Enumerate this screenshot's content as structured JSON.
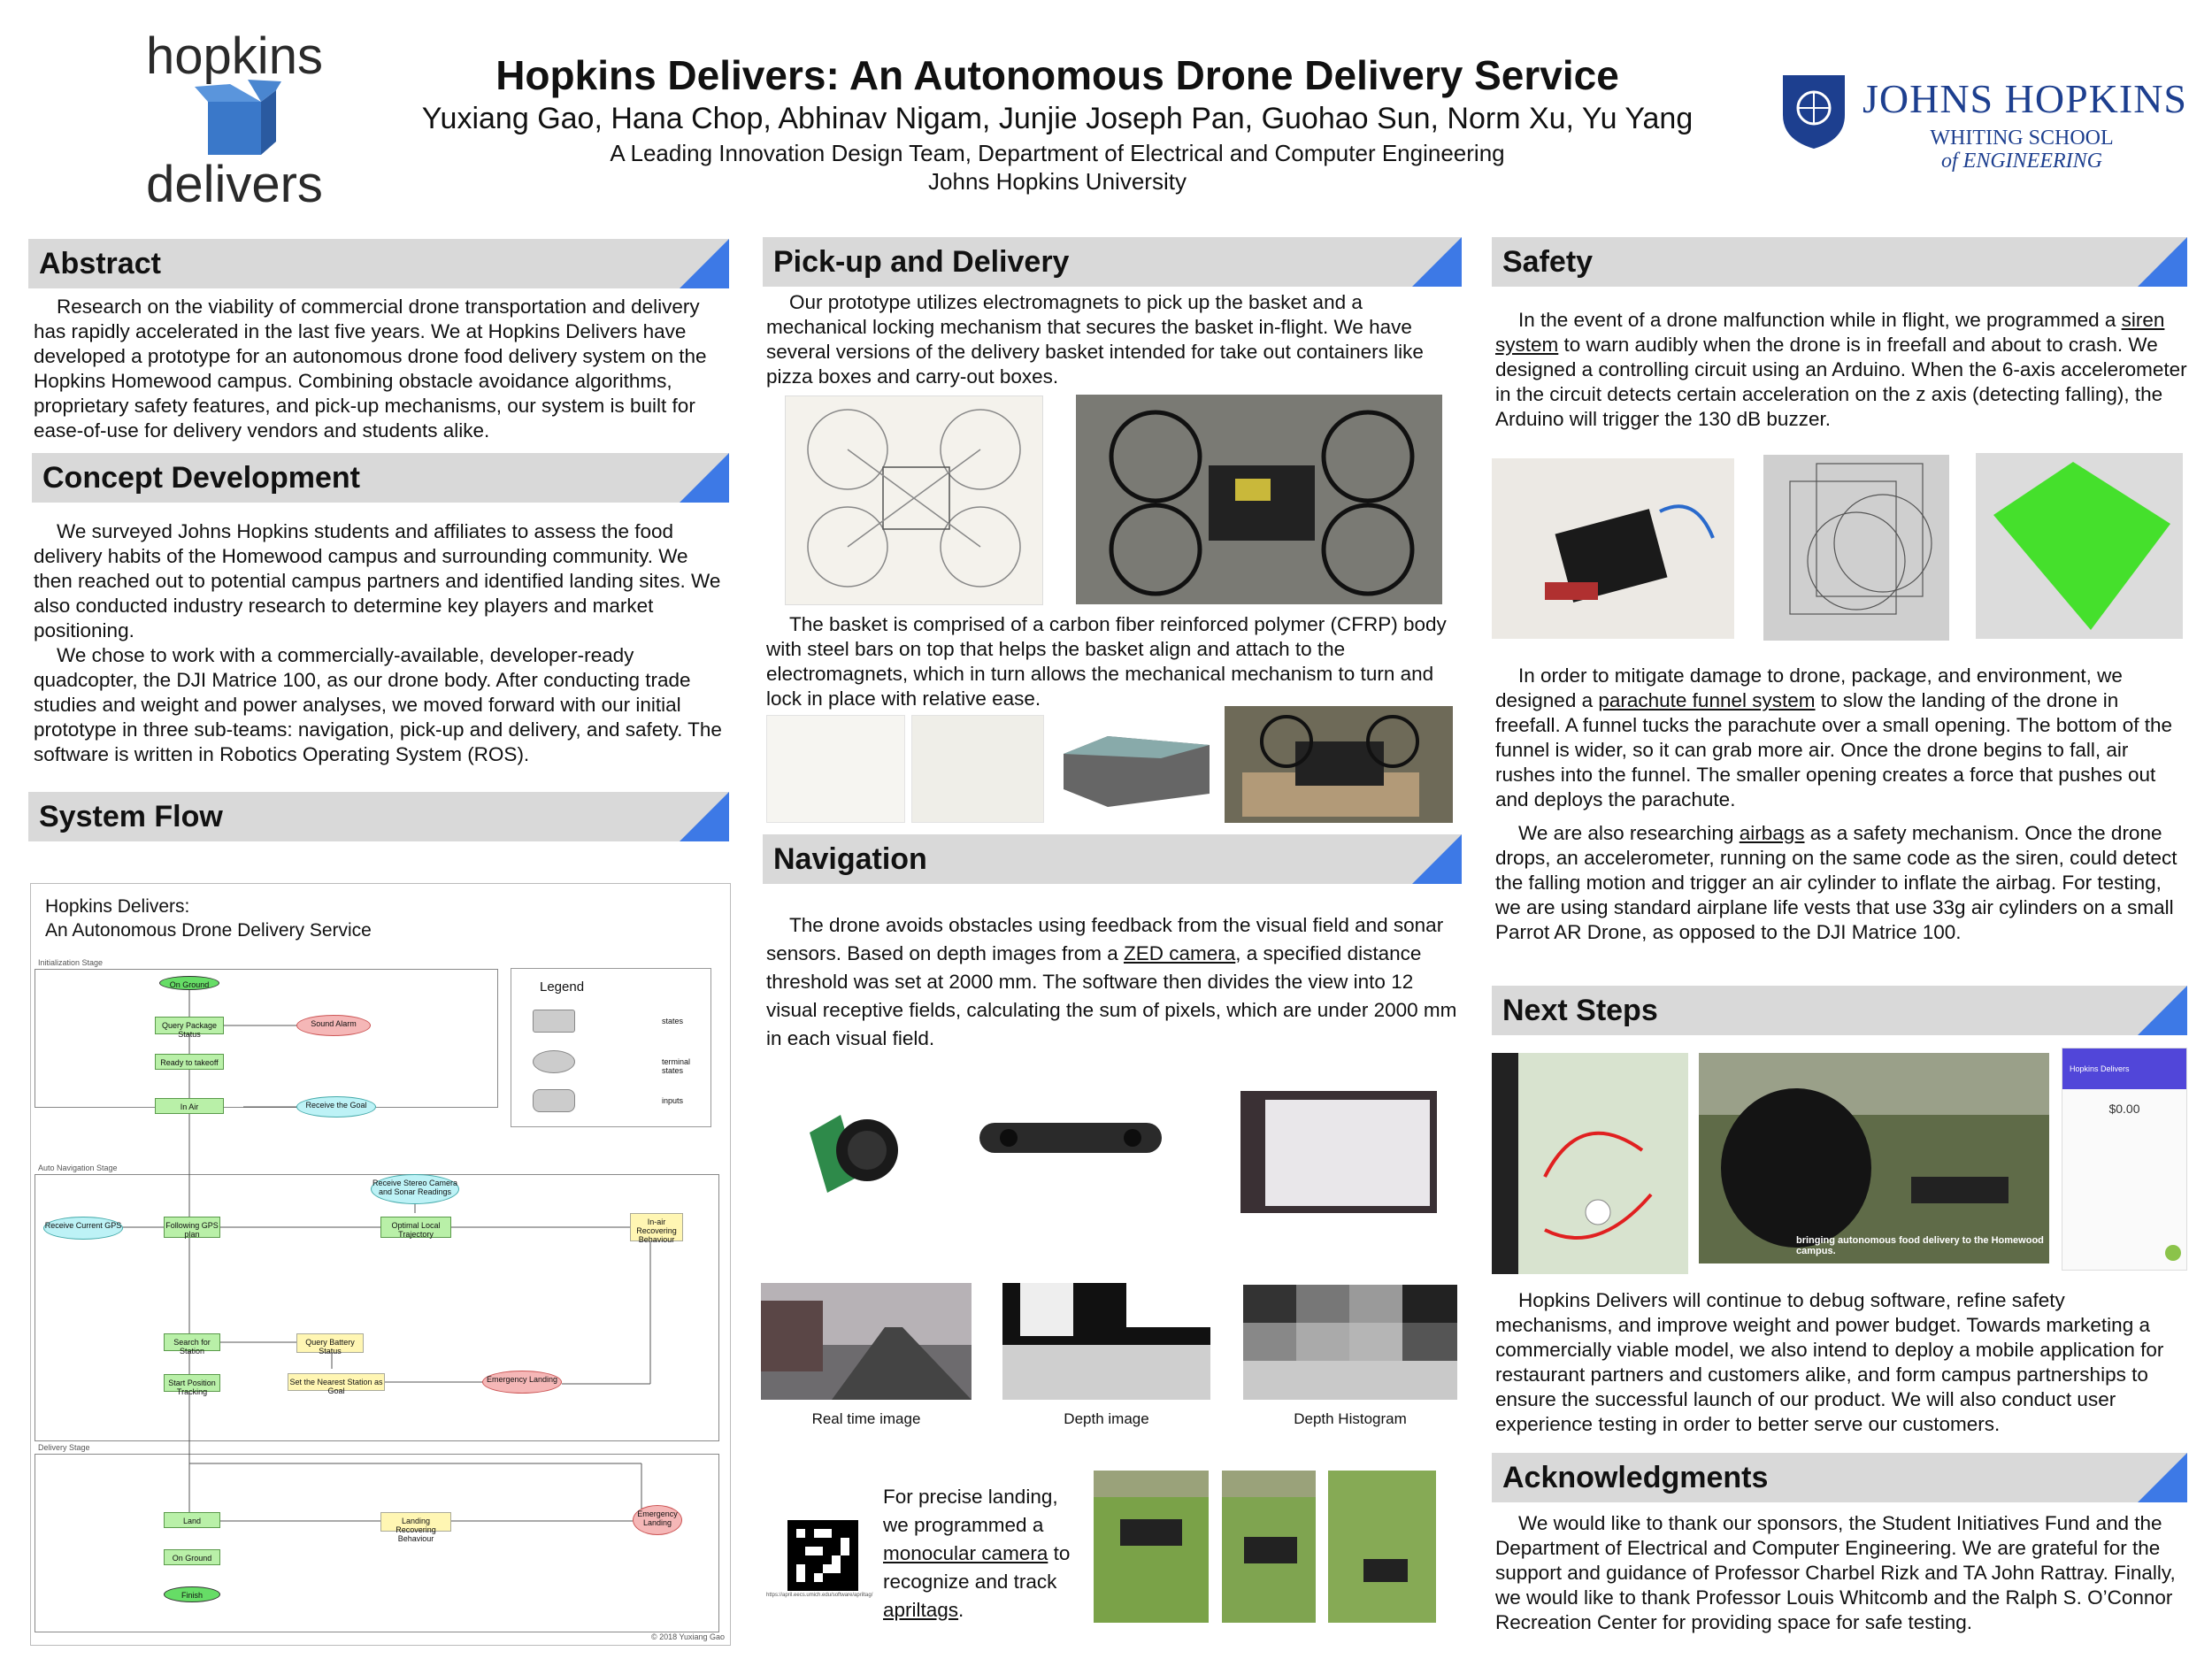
{
  "header": {
    "title": "Hopkins Delivers: An Autonomous Drone Delivery Service",
    "authors": "Yuxiang Gao, Hana Chop, Abhinav Nigam, Junjie Joseph Pan, Guohao Sun, Norm Xu, Yu Yang",
    "affiliation_1": "A Leading Innovation Design Team, Department of Electrical and Computer Engineering",
    "affiliation_2": "Johns Hopkins University",
    "logo_left_top": "hopkins",
    "logo_left_bottom": "delivers",
    "logo_right_main": "JOHNS HOPKINS",
    "logo_right_sub_1": "WHITING SCHOOL",
    "logo_right_sub_2": "of ENGINEERING"
  },
  "abstract": {
    "heading": "Abstract",
    "text": "Research on the viability of commercial drone transportation and delivery has rapidly accelerated in the last five years. We at Hopkins Delivers have developed a prototype for an autonomous drone food delivery system on the Hopkins Homewood campus. Combining obstacle avoidance algorithms, proprietary safety features, and pick-up mechanisms, our system is built for ease-of-use for delivery vendors and students alike."
  },
  "concept": {
    "heading": "Concept Development",
    "p1": "We surveyed Johns Hopkins students and affiliates to assess the food delivery habits of the Homewood campus and surrounding community. We then reached out to potential campus partners and identified landing sites. We also conducted industry research to determine key players and market positioning.",
    "p2": "We chose to work with a commercially-available, developer-ready quadcopter, the DJI Matrice 100, as our drone body. After conducting trade studies and weight and power analyses, we moved forward with our initial prototype in three sub-teams: navigation, pick-up and delivery, and safety. The software is written in Robotics Operating System (ROS)."
  },
  "system_flow": {
    "heading": "System Flow",
    "diagram_title_1": "Hopkins Delivers:",
    "diagram_title_2": "An Autonomous Drone Delivery Service",
    "legend_title": "Legend",
    "legend_states": "states",
    "legend_terminal": "terminal states",
    "legend_inputs": "inputs",
    "stage_init": "Initialization Stage",
    "stage_nav": "Auto Navigation Stage",
    "stage_delivery": "Delivery Stage",
    "n_on_ground": "On Ground",
    "n_query_package": "Query Package Status",
    "n_sound_alarm": "Sound Alarm",
    "n_ready_takeoff": "Ready to takeoff",
    "n_in_air": "In Air",
    "n_receive_goal": "Receive the Goal",
    "n_receive_gps": "Receive Current GPS",
    "n_following_gps": "Following GPS plan",
    "n_optimal_local": "Optimal Local Trajectory",
    "n_receive_stereo": "Receive Stereo Camera and Sonar Readings",
    "n_in_air_recovering": "In-air Recovering Behaviour",
    "n_search_station": "Search for Station",
    "n_query_battery": "Query Battery Status",
    "n_start_tracking": "Start Position Tracking",
    "n_set_station": "Set the Nearest Station as Goal",
    "n_emergency_landing": "Emergency Landing",
    "n_land": "Land",
    "n_landing_recovering": "Landing Recovering Behaviour",
    "n_emergency_landing_2": "Emergency Landing",
    "n_on_ground_2": "On Ground",
    "n_finish": "Finish",
    "copyright": "© 2018 Yuxiang Gao"
  },
  "pickup": {
    "heading": "Pick-up and Delivery",
    "p1": "Our prototype utilizes electromagnets to pick up the basket and a mechanical locking mechanism that secures the basket in-flight. We have several versions of the delivery basket intended for take out containers like pizza boxes and carry-out boxes.",
    "p2": "The basket is comprised of a carbon fiber reinforced polymer (CFRP) body with steel bars on top that helps the basket align and attach to the electromagnets, which in turn allows the mechanical mechanism to turn and lock in place with relative ease."
  },
  "navigation": {
    "heading": "Navigation",
    "text_a": "The drone avoids obstacles using feedback from the visual field and sonar sensors. Based on depth images from a ",
    "link_zed": "ZED camera",
    "text_b": ", a specified distance threshold was set at 2000 mm. The software then divides the view into 12 visual receptive fields, calculating the sum of pixels, which are under 2000 mm in each visual field.",
    "cap_realtime": "Real time image",
    "cap_depth": "Depth image",
    "cap_hist": "Depth Histogram",
    "landing_a": "For precise landing, we programmed a ",
    "link_mono": "monocular camera",
    "landing_b": " to recognize and track ",
    "link_april": "apriltags",
    "landing_c": ".",
    "apriltag_url": "https://april.eecs.umich.edu/software/apriltag/"
  },
  "safety": {
    "heading": "Safety",
    "p1_a": "In the event of a drone malfunction while in flight, we programmed a ",
    "link_siren": "siren system",
    "p1_b": " to warn audibly when the drone is in freefall and about to crash. We designed a controlling circuit using an Arduino. When the 6-axis accelerometer in the circuit detects certain acceleration on the z axis (detecting falling), the Arduino will trigger the 130 dB buzzer.",
    "p2_a": "In order to mitigate damage to drone, package, and environment, we designed a ",
    "link_parachute": "parachute funnel system",
    "p2_b": " to slow the landing of the drone in freefall. A funnel tucks the parachute over a small opening. The bottom of the funnel is wider, so it can grab more air. Once the drone begins to fall, air rushes into the funnel. The smaller opening creates a force that pushes out and deploys the parachute.",
    "p3_a": "We are also researching ",
    "link_airbags": "airbags",
    "p3_b": " as a safety mechanism. Once the drone drops, an accelerometer, running on the same code as the siren, could detect the falling motion and trigger an air cylinder to inflate the airbag. For testing, we are using standard airplane life vests that use 33g air cylinders on a small Parrot AR Drone, as opposed to the DJI Matrice 100."
  },
  "next_steps": {
    "heading": "Next Steps",
    "photo_caption": "bringing autonomous food delivery to the Homewood campus.",
    "app_title": "Hopkins Delivers",
    "app_price": "$0.00",
    "text": "Hopkins Delivers will continue to debug software, refine safety mechanisms, and improve weight and power budget. Towards marketing a commercially viable model, we also intend to deploy a mobile application for restaurant partners and customers alike, and form campus partnerships to ensure the successful launch of our product. We will also conduct user experience testing in order to better serve our customers."
  },
  "acknowledgments": {
    "heading": "Acknowledgments",
    "text": "We would like to thank our sponsors, the Student Initiatives Fund and the Department of Electrical and Computer Engineering. We are grateful for the support and guidance of Professor Charbel Rizk and TA John Rattray. Finally, we would like to thank Professor Louis Whitcomb and the Ralph S. O’Connor Recreation Center for providing space for safe testing."
  },
  "colors": {
    "accent_blue": "#3d79e6",
    "header_gray": "#d9d9d9",
    "jhu_blue": "#1d3f8f"
  }
}
